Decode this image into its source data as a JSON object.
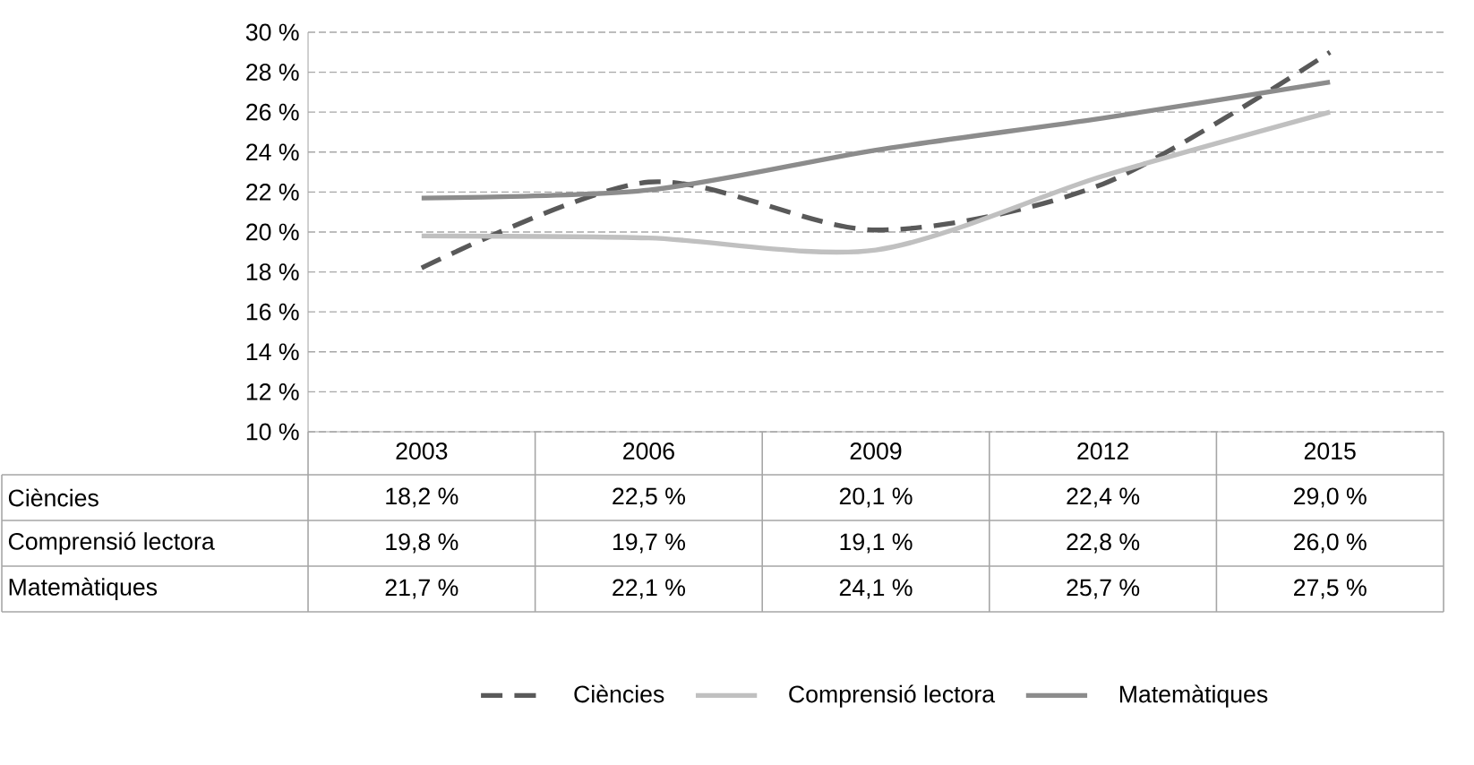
{
  "chart_data": {
    "type": "line",
    "categories": [
      "2003",
      "2006",
      "2009",
      "2012",
      "2015"
    ],
    "series": [
      {
        "name": "Ciències",
        "color": "#595959",
        "line_style": "dashed",
        "values": [
          18.2,
          22.5,
          20.1,
          22.4,
          29.0
        ],
        "value_labels": [
          "18,2 %",
          "22,5 %",
          "20,1 %",
          "22,4 %",
          "29,0 %"
        ]
      },
      {
        "name": "Comprensió lectora",
        "color": "#c0c0c0",
        "line_style": "solid",
        "values": [
          19.8,
          19.7,
          19.1,
          22.8,
          26.0
        ],
        "value_labels": [
          "19,8 %",
          "19,7 %",
          "19,1 %",
          "22,8 %",
          "26,0 %"
        ]
      },
      {
        "name": "Matemàtiques",
        "color": "#8c8c8c",
        "line_style": "solid",
        "values": [
          21.7,
          22.1,
          24.1,
          25.7,
          27.5
        ],
        "value_labels": [
          "21,7 %",
          "22,1 %",
          "24,1 %",
          "25,7 %",
          "27,5 %"
        ]
      }
    ],
    "ylim": [
      10,
      30
    ],
    "yticks": [
      {
        "value": 10,
        "label": "10 %"
      },
      {
        "value": 12,
        "label": "12 %"
      },
      {
        "value": 14,
        "label": "14 %"
      },
      {
        "value": 16,
        "label": "16 %"
      },
      {
        "value": 18,
        "label": "18 %"
      },
      {
        "value": 20,
        "label": "20 %"
      },
      {
        "value": 22,
        "label": "22 %"
      },
      {
        "value": 24,
        "label": "24 %"
      },
      {
        "value": 26,
        "label": "26 %"
      },
      {
        "value": 28,
        "label": "28 %"
      },
      {
        "value": 30,
        "label": "30 %"
      }
    ],
    "grid": "y",
    "legend": "bottom",
    "marker": "none"
  }
}
